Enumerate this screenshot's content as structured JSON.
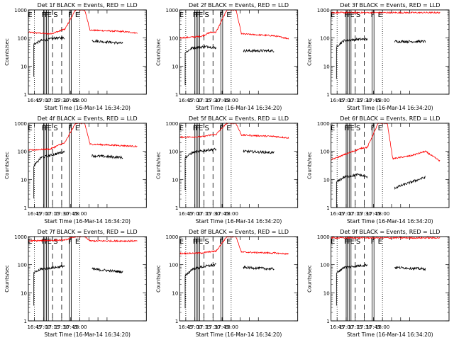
{
  "chart_data": [
    {
      "type": "line",
      "title": "Det 1f BLACK = Events, RED = LLD",
      "xlabel": "Start Time (16-Mar-14 16:34:20)",
      "ylabel": "Counts/sec",
      "red_base": [
        [
          0,
          160
        ],
        [
          0.6,
          140
        ],
        [
          0.85,
          175
        ],
        [
          0.95,
          200
        ],
        [
          1.0,
          200
        ],
        [
          1.3,
          1000
        ],
        [
          1.55,
          1000
        ],
        [
          1.7,
          190
        ],
        [
          2.6,
          170
        ],
        [
          3.0,
          150
        ]
      ],
      "black_base": [
        [
          0.15,
          60
        ],
        [
          0.35,
          80
        ],
        [
          0.75,
          100
        ],
        [
          1.0,
          100
        ],
        [
          1.05,
          null
        ],
        [
          1.75,
          80
        ],
        [
          2.6,
          65
        ]
      ]
    },
    {
      "type": "line",
      "title": "Det 2f BLACK = Events, RED = LLD",
      "xlabel": "Start Time (16-Mar-14 16:34:20)",
      "ylabel": "Counts/sec",
      "red_base": [
        [
          0,
          100
        ],
        [
          0.6,
          115
        ],
        [
          0.85,
          160
        ],
        [
          1.0,
          160
        ],
        [
          1.3,
          1000
        ],
        [
          1.55,
          1000
        ],
        [
          1.7,
          140
        ],
        [
          2.6,
          120
        ],
        [
          3.0,
          95
        ]
      ],
      "black_base": [
        [
          0.15,
          30
        ],
        [
          0.35,
          45
        ],
        [
          0.75,
          50
        ],
        [
          1.0,
          45
        ],
        [
          1.05,
          null
        ],
        [
          1.75,
          35
        ],
        [
          2.6,
          35
        ]
      ]
    },
    {
      "type": "line",
      "title": "Det 3f BLACK = Events, RED = LLD",
      "xlabel": "Start Time (16-Mar-14 16:34:20)",
      "ylabel": "Counts/sec",
      "red_base": [
        [
          0,
          800
        ],
        [
          3.0,
          800
        ]
      ],
      "black_base": [
        [
          0.15,
          50
        ],
        [
          0.35,
          80
        ],
        [
          0.75,
          90
        ],
        [
          1.0,
          90
        ],
        [
          1.05,
          null
        ],
        [
          1.75,
          75
        ],
        [
          2.6,
          75
        ]
      ]
    },
    {
      "type": "line",
      "title": "Det 4f BLACK = Events, RED = LLD",
      "xlabel": "Start Time (16-Mar-14 16:34:20)",
      "ylabel": "Counts/sec",
      "red_base": [
        [
          0,
          110
        ],
        [
          0.6,
          120
        ],
        [
          0.85,
          170
        ],
        [
          1.0,
          200
        ],
        [
          1.3,
          1000
        ],
        [
          1.55,
          1000
        ],
        [
          1.7,
          180
        ],
        [
          2.6,
          160
        ],
        [
          3.0,
          150
        ]
      ],
      "black_base": [
        [
          0.15,
          30
        ],
        [
          0.35,
          60
        ],
        [
          0.75,
          80
        ],
        [
          1.0,
          100
        ],
        [
          1.05,
          null
        ],
        [
          1.75,
          70
        ],
        [
          2.6,
          60
        ]
      ]
    },
    {
      "type": "line",
      "title": "Det 5f BLACK = Events, RED = LLD",
      "xlabel": "Start Time (16-Mar-14 16:34:20)",
      "ylabel": "Counts/sec",
      "red_base": [
        [
          0,
          320
        ],
        [
          0.6,
          330
        ],
        [
          0.85,
          380
        ],
        [
          1.0,
          400
        ],
        [
          1.3,
          1000
        ],
        [
          1.55,
          1000
        ],
        [
          1.7,
          380
        ],
        [
          2.6,
          340
        ],
        [
          3.0,
          300
        ]
      ],
      "black_base": [
        [
          0.15,
          60
        ],
        [
          0.35,
          90
        ],
        [
          0.75,
          110
        ],
        [
          1.0,
          120
        ],
        [
          1.05,
          null
        ],
        [
          1.75,
          100
        ],
        [
          2.6,
          90
        ]
      ]
    },
    {
      "type": "line",
      "title": "Det 6f BLACK = Events, RED = LLD",
      "xlabel": "Start Time (16-Mar-14 16:34:20)",
      "ylabel": "Counts/sec",
      "red_base": [
        [
          0,
          50
        ],
        [
          0.3,
          70
        ],
        [
          0.6,
          100
        ],
        [
          0.85,
          130
        ],
        [
          1.0,
          140
        ],
        [
          1.3,
          1000
        ],
        [
          1.55,
          1000
        ],
        [
          1.7,
          55
        ],
        [
          2.2,
          70
        ],
        [
          2.6,
          100
        ],
        [
          3.0,
          45
        ]
      ],
      "black_base": [
        [
          0.15,
          8
        ],
        [
          0.35,
          12
        ],
        [
          0.75,
          15
        ],
        [
          1.0,
          12
        ],
        [
          1.05,
          null
        ],
        [
          1.75,
          5
        ],
        [
          2.2,
          8
        ],
        [
          2.6,
          12
        ]
      ]
    },
    {
      "type": "line",
      "title": "Det 7f BLACK = Events, RED = LLD",
      "xlabel": "Start Time (16-Mar-14 16:34:20)",
      "ylabel": "Counts/sec",
      "red_base": [
        [
          0,
          700
        ],
        [
          1.0,
          750
        ],
        [
          1.3,
          1000
        ],
        [
          1.55,
          1000
        ],
        [
          1.7,
          700
        ],
        [
          3.0,
          700
        ]
      ],
      "black_base": [
        [
          0.15,
          50
        ],
        [
          0.35,
          70
        ],
        [
          0.75,
          80
        ],
        [
          1.0,
          90
        ],
        [
          1.05,
          null
        ],
        [
          1.75,
          70
        ],
        [
          2.6,
          55
        ]
      ]
    },
    {
      "type": "line",
      "title": "Det 8f BLACK = Events, RED = LLD",
      "xlabel": "Start Time (16-Mar-14 16:34:20)",
      "ylabel": "Counts/sec",
      "red_base": [
        [
          0,
          250
        ],
        [
          0.6,
          260
        ],
        [
          0.85,
          290
        ],
        [
          1.0,
          300
        ],
        [
          1.3,
          1000
        ],
        [
          1.55,
          1000
        ],
        [
          1.7,
          280
        ],
        [
          2.6,
          260
        ],
        [
          3.0,
          240
        ]
      ],
      "black_base": [
        [
          0.15,
          40
        ],
        [
          0.35,
          70
        ],
        [
          0.75,
          90
        ],
        [
          1.0,
          100
        ],
        [
          1.05,
          null
        ],
        [
          1.75,
          80
        ],
        [
          2.6,
          70
        ]
      ]
    },
    {
      "type": "line",
      "title": "Det 9f BLACK = Events, RED = LLD",
      "xlabel": "Start Time (16-Mar-14 16:34:20)",
      "ylabel": "Counts/sec",
      "red_base": [
        [
          0,
          900
        ],
        [
          3.0,
          900
        ]
      ],
      "black_base": [
        [
          0.15,
          50
        ],
        [
          0.35,
          80
        ],
        [
          0.75,
          90
        ],
        [
          1.0,
          100
        ],
        [
          1.05,
          null
        ],
        [
          1.75,
          80
        ],
        [
          2.6,
          70
        ]
      ]
    }
  ],
  "common": {
    "y_log": true,
    "ylim": [
      1,
      1000
    ],
    "yticks": [
      1,
      10,
      100,
      1000
    ],
    "ytick_labels": [
      "1",
      "10",
      "100",
      "1000"
    ],
    "xlim": [
      0,
      3.25
    ],
    "xticks": [
      0.167,
      0.417,
      0.667,
      0.917,
      1.167,
      1.417,
      1.667,
      1.917,
      2.167
    ],
    "xtick_labels": [
      "16:45",
      "17:00",
      "17:15",
      "17:30",
      "17:45",
      "18:00"
    ],
    "xtick_label_at": [
      0.167,
      0.417,
      0.667,
      0.917,
      1.167,
      1.417
    ],
    "dotted_lines": [
      0.167,
      1.417
    ],
    "dashed_lines": [
      0.667,
      0.917
    ],
    "solid_lines": [
      0.417,
      0.45,
      0.5,
      0.55,
      1.133,
      1.183
    ],
    "letters": [
      {
        "x": 0.05,
        "t": "E"
      },
      {
        "x": 0.417,
        "t": "F"
      },
      {
        "x": 0.5,
        "t": "F"
      },
      {
        "x": 0.583,
        "t": "E"
      },
      {
        "x": 0.75,
        "t": "S"
      },
      {
        "x": 1.15,
        "t": "F"
      },
      {
        "x": 1.35,
        "t": "E"
      }
    ],
    "colors": {
      "events": "#000000",
      "lld": "#ff0000"
    }
  }
}
